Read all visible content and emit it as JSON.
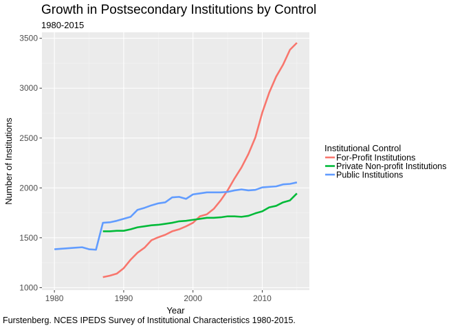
{
  "chart_data": {
    "type": "line",
    "title": "Growth in Postsecondary Institutions by Control",
    "subtitle": "1980-2015",
    "xlabel": "Year",
    "ylabel": "Number of Institutions",
    "caption": "Furstenberg. NCES IPEDS Survey of Institutional Characteristics 1980-2015.",
    "xlim": [
      1978.2,
      2016.8
    ],
    "ylim": [
      975,
      3560
    ],
    "x_ticks": [
      1980,
      1990,
      2000,
      2010
    ],
    "y_ticks": [
      1000,
      1500,
      2000,
      2500,
      3000,
      3500
    ],
    "grid": true,
    "legend": {
      "title": "Institutional Control",
      "placement": "right"
    },
    "series": [
      {
        "name": "For-Profit Institutions",
        "color": "#F8766D",
        "x": [
          1987,
          1988,
          1989,
          1990,
          1991,
          1992,
          1993,
          1994,
          1995,
          1996,
          1997,
          1998,
          1999,
          2000,
          2001,
          2002,
          2003,
          2004,
          2005,
          2006,
          2007,
          2008,
          2009,
          2010,
          2011,
          2012,
          2013,
          2014,
          2015
        ],
        "y": [
          1105,
          1120,
          1140,
          1195,
          1280,
          1350,
          1400,
          1475,
          1505,
          1530,
          1565,
          1585,
          1615,
          1650,
          1715,
          1735,
          1790,
          1875,
          1975,
          2095,
          2205,
          2340,
          2505,
          2755,
          2955,
          3115,
          3235,
          3385,
          3455
        ]
      },
      {
        "name": "Private Non-profit Institutions",
        "color": "#00BA38",
        "x": [
          1987,
          1988,
          1989,
          1990,
          1991,
          1992,
          1993,
          1994,
          1995,
          1996,
          1997,
          1998,
          1999,
          2000,
          2001,
          2002,
          2003,
          2004,
          2005,
          2006,
          2007,
          2008,
          2009,
          2010,
          2011,
          2012,
          2013,
          2014,
          2015
        ],
        "y": [
          1565,
          1565,
          1570,
          1570,
          1585,
          1605,
          1615,
          1625,
          1630,
          1640,
          1650,
          1665,
          1670,
          1680,
          1690,
          1700,
          1700,
          1705,
          1715,
          1715,
          1710,
          1720,
          1745,
          1765,
          1805,
          1820,
          1855,
          1875,
          1945
        ]
      },
      {
        "name": "Public Institutions",
        "color": "#619CFF",
        "x": [
          1980,
          1981,
          1982,
          1983,
          1984,
          1985,
          1986,
          1987,
          1988,
          1989,
          1990,
          1991,
          1992,
          1993,
          1994,
          1995,
          1996,
          1997,
          1998,
          1999,
          2000,
          2001,
          2002,
          2003,
          2004,
          2005,
          2006,
          2007,
          2008,
          2009,
          2010,
          2011,
          2012,
          2013,
          2014,
          2015
        ],
        "y": [
          1385,
          1390,
          1395,
          1400,
          1405,
          1385,
          1380,
          1650,
          1655,
          1670,
          1690,
          1710,
          1780,
          1800,
          1825,
          1845,
          1855,
          1905,
          1910,
          1890,
          1935,
          1945,
          1955,
          1955,
          1955,
          1960,
          1975,
          1985,
          1975,
          1980,
          2005,
          2010,
          2015,
          2035,
          2040,
          2055
        ]
      }
    ]
  }
}
